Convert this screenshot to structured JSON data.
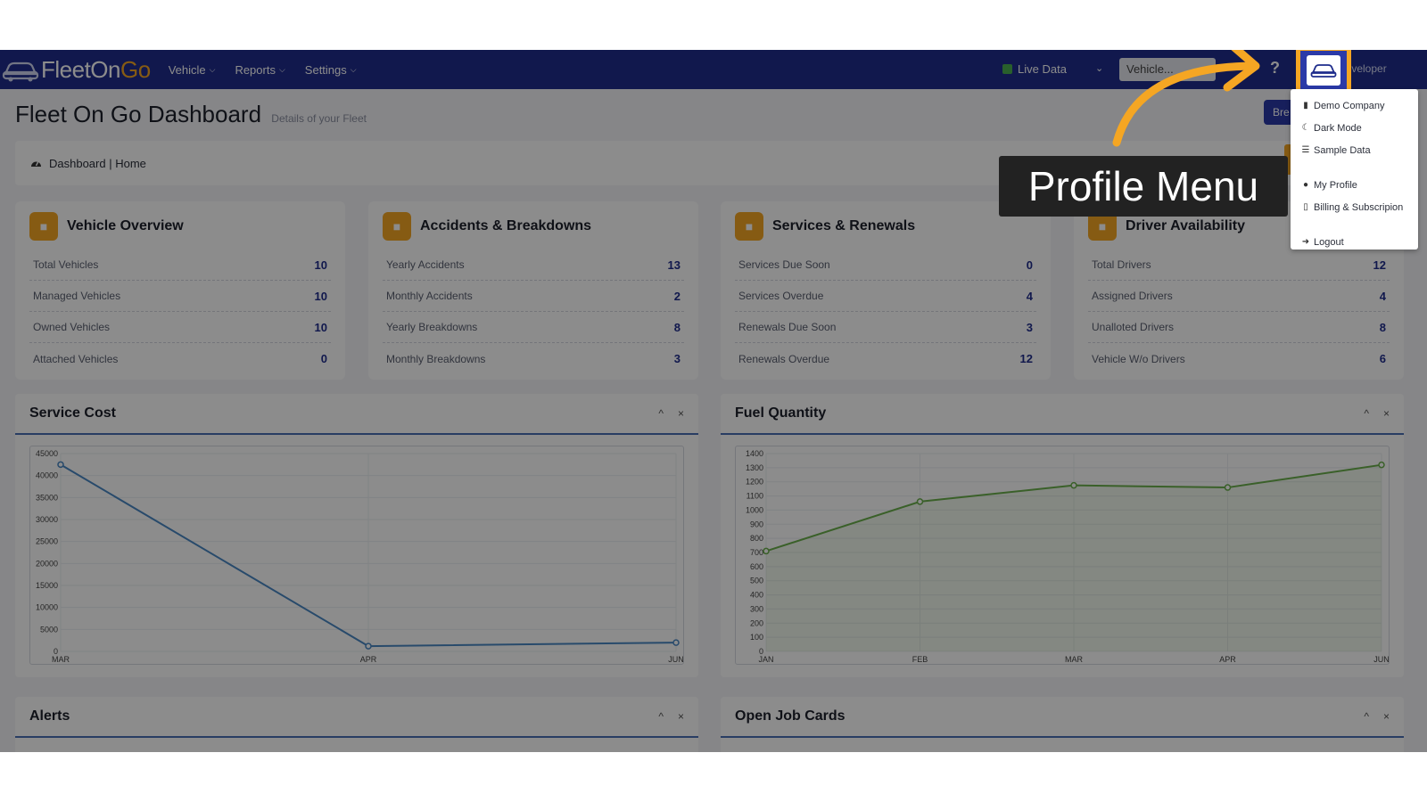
{
  "navbar": {
    "brand_left": "FleetOn",
    "brand_right": "Go",
    "menu": [
      {
        "label": "Vehicle"
      },
      {
        "label": "Reports"
      },
      {
        "label": "Settings"
      }
    ],
    "live_data_label": "Live Data",
    "vehicle_select_placeholder": "Vehicle...",
    "help_label": "?",
    "user_name": "Developer"
  },
  "page": {
    "title": "Fleet On Go Dashboard",
    "subtitle": "Details of your Fleet",
    "top_button": "Bre",
    "breadcrumb": "Dashboard | Home"
  },
  "cards": [
    {
      "title": "Vehicle Overview",
      "rows": [
        {
          "label": "Total Vehicles",
          "value": "10"
        },
        {
          "label": "Managed Vehicles",
          "value": "10"
        },
        {
          "label": "Owned Vehicles",
          "value": "10"
        },
        {
          "label": "Attached Vehicles",
          "value": "0"
        }
      ]
    },
    {
      "title": "Accidents & Breakdowns",
      "rows": [
        {
          "label": "Yearly Accidents",
          "value": "13"
        },
        {
          "label": "Monthly Accidents",
          "value": "2"
        },
        {
          "label": "Yearly Breakdowns",
          "value": "8"
        },
        {
          "label": "Monthly Breakdowns",
          "value": "3"
        }
      ]
    },
    {
      "title": "Services & Renewals",
      "rows": [
        {
          "label": "Services Due Soon",
          "value": "0"
        },
        {
          "label": "Services Overdue",
          "value": "4"
        },
        {
          "label": "Renewals Due Soon",
          "value": "3"
        },
        {
          "label": "Renewals Overdue",
          "value": "12"
        }
      ]
    },
    {
      "title": "Driver Availability",
      "rows": [
        {
          "label": "Total Drivers",
          "value": "12"
        },
        {
          "label": "Assigned Drivers",
          "value": "4"
        },
        {
          "label": "Unalloted Drivers",
          "value": "8"
        },
        {
          "label": "Vehicle W/o Drivers",
          "value": "6"
        }
      ]
    }
  ],
  "panels": {
    "service_cost": {
      "title": "Service Cost"
    },
    "fuel_quantity": {
      "title": "Fuel Quantity"
    },
    "alerts": {
      "title": "Alerts"
    },
    "open_job_cards": {
      "title": "Open Job Cards"
    },
    "collapse_glyph": "^",
    "close_glyph": "×"
  },
  "profile_menu": {
    "items": [
      {
        "label": "Demo Company"
      },
      {
        "label": "Dark Mode"
      },
      {
        "label": "Sample Data"
      },
      {
        "label": "My Profile"
      },
      {
        "label": "Billing & Subscripion"
      },
      {
        "label": "Logout"
      }
    ]
  },
  "callout": {
    "label": "Profile Menu"
  },
  "colors": {
    "navbar": "#1f2d8c",
    "accent": "#f5a623",
    "service_line": "#4a88c4",
    "fuel_line": "#6ab04c"
  },
  "chart_data": [
    {
      "type": "line",
      "title": "Service Cost",
      "categories": [
        "MAR",
        "APR",
        "JUN"
      ],
      "values": [
        42500,
        1200,
        2000
      ],
      "yticks": [
        0,
        5000,
        10000,
        15000,
        20000,
        25000,
        30000,
        35000,
        40000,
        45000
      ],
      "ylim": [
        0,
        45000
      ]
    },
    {
      "type": "line",
      "title": "Fuel Quantity",
      "categories": [
        "JAN",
        "FEB",
        "MAR",
        "APR",
        "JUN"
      ],
      "values": [
        710,
        1060,
        1175,
        1160,
        1320
      ],
      "yticks": [
        0,
        100,
        200,
        300,
        400,
        500,
        600,
        700,
        800,
        900,
        1000,
        1100,
        1200,
        1300,
        1400
      ],
      "ylim": [
        0,
        1400
      ]
    }
  ]
}
